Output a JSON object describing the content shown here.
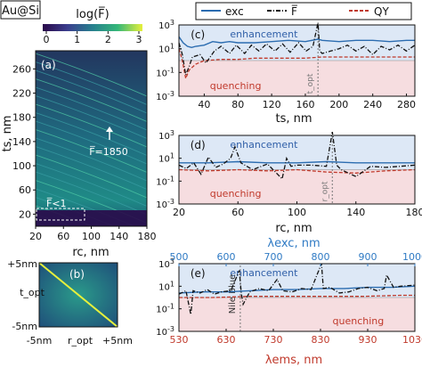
{
  "figure_label": "Au@Si",
  "colorbar": {
    "title": "log(F̅)",
    "ticks": [
      "0",
      "1",
      "2",
      "3"
    ]
  },
  "legend": {
    "items": [
      "exc",
      "F̅",
      "QY"
    ]
  },
  "colors": {
    "exc": "#2b6cb0",
    "F": "#111111",
    "QY": "#c0392b",
    "blue_axis": "#2f7ac4",
    "red_axis": "#c0392b",
    "enh_bg": "#dde8f6",
    "que_bg": "#f6dde0",
    "diag": "#e6f03c"
  },
  "chart_data": [
    {
      "id": "a",
      "type": "heatmap",
      "panel_label": "(a)",
      "xlabel": "rc, nm",
      "ylabel": "ts, nm",
      "xlim": [
        20,
        180
      ],
      "ylim": [
        0,
        290
      ],
      "xticks": [
        "20",
        "60",
        "100",
        "140",
        "180"
      ],
      "yticks": [
        "20",
        "60",
        "100",
        "140",
        "180",
        "220",
        "260"
      ],
      "annotations": {
        "peak": "F̅=1850",
        "low": "F̅<1"
      }
    },
    {
      "id": "b",
      "type": "heatmap",
      "panel_label": "(b)",
      "xlabel": "r_opt",
      "ylabel": "t_opt",
      "xticks": [
        "-5nm",
        "+5nm"
      ],
      "yticks": [
        "+5nm",
        "-5nm"
      ]
    },
    {
      "id": "c",
      "type": "line",
      "panel_label": "(c)",
      "xlabel": "ts, nm",
      "ylabel": "",
      "xlim": [
        10,
        290
      ],
      "ylim_log": [
        -3,
        3
      ],
      "xticks": [
        "40",
        "80",
        "120",
        "160",
        "200",
        "240",
        "280"
      ],
      "yticks": [
        "10-3",
        "10-1",
        "101",
        "103"
      ],
      "regions": [
        "enhancement",
        "quenching"
      ],
      "marker_label": "t_opt",
      "marker_x": 175,
      "series": [
        {
          "name": "exc",
          "x": [
            10,
            15,
            20,
            25,
            30,
            40,
            50,
            60,
            70,
            80,
            100,
            120,
            140,
            160,
            175,
            180,
            200,
            220,
            240,
            260,
            280,
            290
          ],
          "y": [
            2.0,
            1.5,
            1.2,
            1.1,
            1.2,
            1.3,
            1.6,
            1.5,
            1.6,
            1.5,
            1.5,
            1.6,
            1.7,
            1.6,
            1.8,
            1.7,
            1.6,
            1.7,
            1.7,
            1.6,
            1.7,
            1.7
          ]
        },
        {
          "name": "F̅",
          "x": [
            10,
            14,
            18,
            22,
            26,
            35,
            42,
            52,
            60,
            70,
            78,
            88,
            96,
            105,
            114,
            124,
            133,
            142,
            152,
            161,
            169,
            175,
            177,
            180,
            190,
            200,
            210,
            220,
            230,
            240,
            250,
            260,
            270,
            280,
            290
          ],
          "y": [
            1.5,
            0.5,
            -1.2,
            -0.5,
            0.3,
            0.5,
            -0.2,
            0.8,
            1.2,
            0.6,
            1.3,
            0.6,
            1.3,
            0.8,
            1.4,
            0.8,
            1.4,
            0.7,
            1.5,
            0.8,
            1.2,
            3.2,
            0.8,
            0.6,
            0.8,
            1.0,
            1.3,
            0.8,
            1.2,
            0.5,
            1.2,
            0.9,
            1.3,
            0.8,
            1.3
          ]
        },
        {
          "name": "QY",
          "x": [
            10,
            14,
            18,
            22,
            30,
            40,
            60,
            80,
            100,
            120,
            140,
            160,
            180,
            200,
            220,
            240,
            260,
            280,
            290
          ],
          "y": [
            1.0,
            0.0,
            -1.5,
            -0.8,
            -0.3,
            0.0,
            0.1,
            0.1,
            0.2,
            0.2,
            0.2,
            0.2,
            0.3,
            0.3,
            0.3,
            0.3,
            0.3,
            0.3,
            0.3
          ]
        }
      ]
    },
    {
      "id": "d",
      "type": "line",
      "panel_label": "(d)",
      "xlabel": "rc, nm",
      "ylabel": "",
      "xlim": [
        20,
        180
      ],
      "ylim_log": [
        -3,
        3
      ],
      "xticks": [
        "20",
        "60",
        "100",
        "140",
        "180"
      ],
      "yticks": [
        "10-3",
        "10-1",
        "101",
        "103"
      ],
      "regions": [
        "enhancement",
        "quenching"
      ],
      "marker_label": "r_opt",
      "marker_x": 124,
      "series": [
        {
          "name": "exc",
          "x": [
            20,
            40,
            60,
            80,
            100,
            120,
            140,
            160,
            180
          ],
          "y": [
            0.6,
            0.6,
            0.7,
            0.6,
            0.6,
            0.7,
            0.6,
            0.6,
            0.6
          ]
        },
        {
          "name": "F̅",
          "x": [
            20,
            25,
            30,
            35,
            40,
            45,
            50,
            55,
            58,
            62,
            70,
            80,
            90,
            93,
            96,
            100,
            110,
            120,
            124,
            127,
            130,
            140,
            150,
            160,
            170,
            180
          ],
          "y": [
            0.4,
            0.1,
            0.6,
            -0.4,
            1.1,
            0.2,
            0.5,
            1.0,
            2.0,
            0.6,
            0.0,
            0.5,
            -0.8,
            1.0,
            0.3,
            0.4,
            0.4,
            0.3,
            3.3,
            0.4,
            0.0,
            -0.6,
            0.3,
            0.2,
            0.3,
            0.4
          ]
        },
        {
          "name": "QY",
          "x": [
            20,
            40,
            60,
            80,
            100,
            120,
            140,
            160,
            180
          ],
          "y": [
            0.0,
            -0.1,
            0.0,
            -0.1,
            0.0,
            -0.2,
            -0.3,
            -0.1,
            0.0
          ]
        }
      ]
    },
    {
      "id": "e",
      "type": "line",
      "panel_label": "(e)",
      "xlabel": "λems, nm",
      "xlabel_top": "λexc, nm",
      "xlim": [
        530,
        1030
      ],
      "xlim_top": [
        500,
        1000
      ],
      "ylim_log": [
        -3,
        3
      ],
      "xticks": [
        "530",
        "630",
        "730",
        "830",
        "930",
        "1030"
      ],
      "xticks_top": [
        "500",
        "600",
        "700",
        "800",
        "900",
        "1000"
      ],
      "yticks": [
        "10-3",
        "10-1",
        "101",
        "103"
      ],
      "regions": [
        "enhancement",
        "quenching"
      ],
      "marker_label": "Nile Blue",
      "marker_x": 660,
      "series": [
        {
          "name": "exc",
          "x": [
            530,
            580,
            630,
            680,
            730,
            780,
            830,
            880,
            930,
            980,
            1030
          ],
          "y": [
            0.4,
            0.5,
            0.5,
            0.6,
            0.7,
            0.7,
            0.8,
            0.8,
            0.9,
            0.9,
            1.0
          ]
        },
        {
          "name": "F̅",
          "x": [
            530,
            545,
            555,
            560,
            575,
            590,
            605,
            620,
            640,
            658,
            662,
            666,
            680,
            700,
            720,
            738,
            750,
            770,
            790,
            810,
            832,
            836,
            850,
            870,
            890,
            910,
            930,
            950,
            965,
            970,
            985,
            1000,
            1030
          ],
          "y": [
            0.3,
            0.6,
            -1.5,
            0.6,
            0.4,
            0.7,
            0.3,
            0.5,
            0.6,
            2.4,
            0.4,
            -0.6,
            0.5,
            0.8,
            0.6,
            1.6,
            0.6,
            0.5,
            0.8,
            0.7,
            3.0,
            0.8,
            0.9,
            0.4,
            0.5,
            0.8,
            0.9,
            0.6,
            0.8,
            2.0,
            0.9,
            1.0,
            1.1
          ]
        },
        {
          "name": "QY",
          "x": [
            530,
            600,
            680,
            760,
            840,
            920,
            1000,
            1030
          ],
          "y": [
            0.0,
            0.0,
            0.1,
            0.1,
            0.1,
            0.1,
            0.2,
            0.2
          ]
        }
      ]
    }
  ]
}
